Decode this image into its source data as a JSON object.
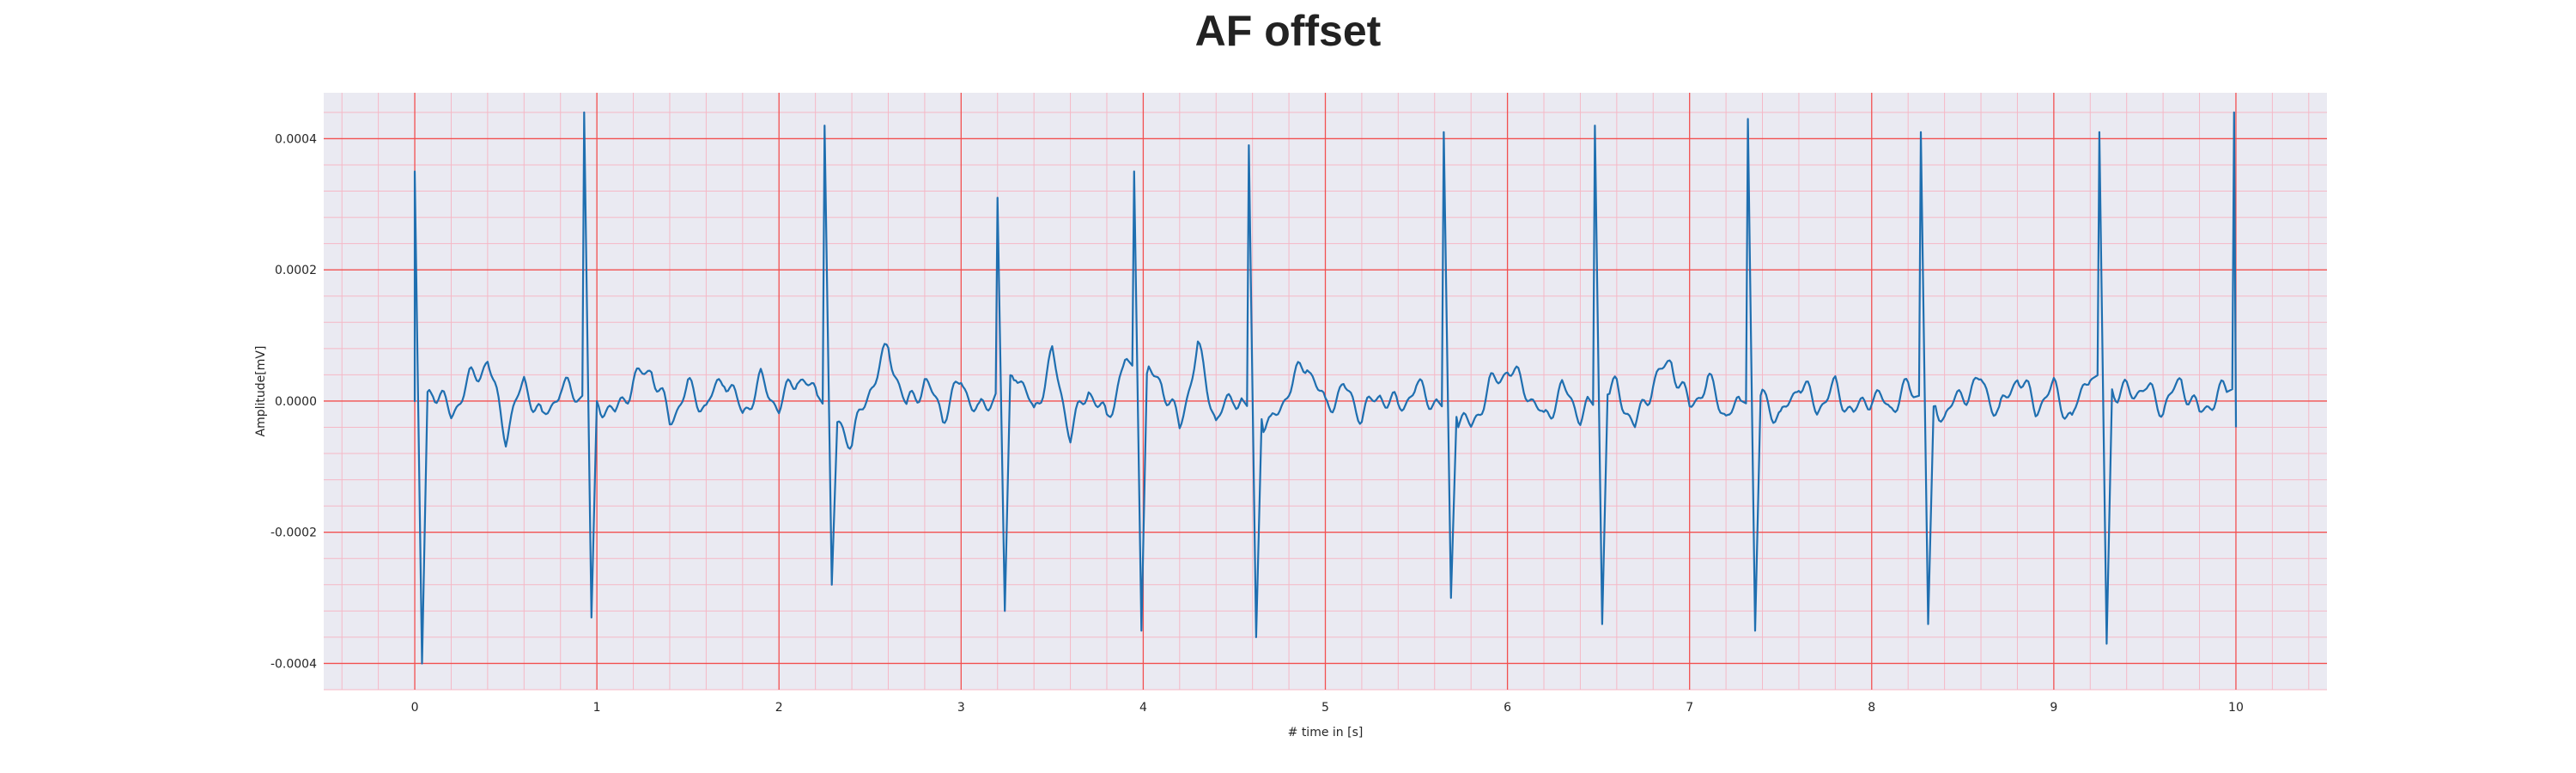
{
  "colors": {
    "plot_background": "#eaeaf2",
    "major_grid": "#f25050",
    "minor_grid": "#f5b8c6",
    "series_line": "#1f6fb0"
  },
  "chart_data": {
    "type": "line",
    "title": "AF offset",
    "xlabel": "# time in [s]",
    "ylabel": "Amplitude[mV]",
    "xlim": [
      -0.5,
      10.5
    ],
    "ylim": [
      -0.00044,
      0.00047
    ],
    "xticks": [
      0,
      1,
      2,
      3,
      4,
      5,
      6,
      7,
      8,
      9,
      10
    ],
    "xtick_labels": [
      "0",
      "1",
      "2",
      "3",
      "4",
      "5",
      "6",
      "7",
      "8",
      "9",
      "10"
    ],
    "yticks": [
      -0.0004,
      -0.0002,
      0.0,
      0.0002,
      0.0004
    ],
    "ytick_labels": [
      "-0.0004",
      "-0.0002",
      "0.0000",
      "0.0002",
      "0.0004"
    ],
    "grid": "major red grid with minor pink grid",
    "legend": "none",
    "series": [
      {
        "start_value": 0.00026,
        "beats": [
          {
            "t": 0.0,
            "peak": 0.00035,
            "trough": -0.0004
          },
          {
            "t": 0.93,
            "peak": 0.00044,
            "trough": -0.00033
          },
          {
            "t": 2.25,
            "peak": 0.00042,
            "trough": -0.00028
          },
          {
            "t": 3.2,
            "peak": 0.00031,
            "trough": -0.00032
          },
          {
            "t": 3.95,
            "peak": 0.00035,
            "trough": -0.00035
          },
          {
            "t": 4.58,
            "peak": 0.00039,
            "trough": -0.00036
          },
          {
            "t": 5.65,
            "peak": 0.00041,
            "trough": -0.0003
          },
          {
            "t": 6.48,
            "peak": 0.00042,
            "trough": -0.00034
          },
          {
            "t": 7.32,
            "peak": 0.00043,
            "trough": -0.00035
          },
          {
            "t": 8.27,
            "peak": 0.00041,
            "trough": -0.00034
          },
          {
            "t": 9.25,
            "peak": 0.00041,
            "trough": -0.00037
          },
          {
            "t": 9.99,
            "peak": 0.00044,
            "trough": -4e-05
          }
        ],
        "baseline": [
          [
            0.0,
            0.0
          ],
          [
            0.1,
            2e-05
          ],
          [
            0.2,
            -2e-05
          ],
          [
            0.3,
            3e-05
          ],
          [
            0.4,
            6e-05
          ],
          [
            0.5,
            -5e-05
          ],
          [
            0.6,
            3e-05
          ],
          [
            0.7,
            -3e-05
          ],
          [
            0.8,
            2e-05
          ],
          [
            0.9,
            1e-05
          ],
          [
            1.0,
            0.0
          ],
          [
            1.1,
            -2e-05
          ],
          [
            1.2,
            3e-05
          ],
          [
            1.3,
            5e-05
          ],
          [
            1.4,
            -3e-05
          ],
          [
            1.5,
            2e-05
          ],
          [
            1.6,
            -1e-05
          ],
          [
            1.7,
            4e-05
          ],
          [
            1.8,
            -2e-05
          ],
          [
            1.9,
            3e-05
          ],
          [
            2.0,
            -1e-05
          ],
          [
            2.1,
            4e-05
          ],
          [
            2.2,
            1e-05
          ],
          [
            2.4,
            -6e-05
          ],
          [
            2.5,
            2e-05
          ],
          [
            2.6,
            8e-05
          ],
          [
            2.7,
            -1e-05
          ],
          [
            2.8,
            3e-05
          ],
          [
            2.9,
            -2e-05
          ],
          [
            3.0,
            3e-05
          ],
          [
            3.1,
            -2e-05
          ],
          [
            3.3,
            5e-05
          ],
          [
            3.4,
            -2e-05
          ],
          [
            3.5,
            7e-05
          ],
          [
            3.6,
            -5e-05
          ],
          [
            3.7,
            2e-05
          ],
          [
            3.8,
            -3e-05
          ],
          [
            3.9,
            6e-05
          ],
          [
            4.1,
            3e-05
          ],
          [
            4.2,
            -4e-05
          ],
          [
            4.3,
            8e-05
          ],
          [
            4.4,
            -3e-05
          ],
          [
            4.5,
            1e-05
          ],
          [
            4.7,
            -4e-05
          ],
          [
            4.8,
            2e-05
          ],
          [
            4.9,
            6e-05
          ],
          [
            5.0,
            -1e-05
          ],
          [
            5.1,
            2e-05
          ],
          [
            5.2,
            -2e-05
          ],
          [
            5.3,
            1e-05
          ],
          [
            5.4,
            -1e-05
          ],
          [
            5.5,
            2e-05
          ],
          [
            5.6,
            0.0
          ],
          [
            5.8,
            -4e-05
          ],
          [
            5.9,
            2e-05
          ],
          [
            6.0,
            5e-05
          ],
          [
            6.1,
            2e-05
          ],
          [
            6.2,
            -3e-05
          ],
          [
            6.3,
            2e-05
          ],
          [
            6.4,
            -2e-05
          ],
          [
            6.6,
            2e-05
          ],
          [
            6.7,
            -4e-05
          ],
          [
            6.8,
            3e-05
          ],
          [
            6.9,
            6e-05
          ],
          [
            7.0,
            -1e-05
          ],
          [
            7.1,
            3e-05
          ],
          [
            7.2,
            -2e-05
          ],
          [
            7.4,
            1e-05
          ],
          [
            7.5,
            -3e-05
          ],
          [
            7.6,
            3e-05
          ],
          [
            7.7,
            -1e-05
          ],
          [
            7.8,
            2e-05
          ],
          [
            7.9,
            -2e-05
          ],
          [
            8.0,
            1e-05
          ],
          [
            8.1,
            -1e-05
          ],
          [
            8.2,
            2e-05
          ],
          [
            8.4,
            -2e-05
          ],
          [
            8.5,
            1e-05
          ],
          [
            8.6,
            3e-05
          ],
          [
            8.7,
            -2e-05
          ],
          [
            8.8,
            4e-05
          ],
          [
            8.9,
            -1e-05
          ],
          [
            9.0,
            2e-05
          ],
          [
            9.1,
            -3e-05
          ],
          [
            9.2,
            5e-05
          ],
          [
            9.35,
            1e-05
          ],
          [
            9.5,
            2e-05
          ],
          [
            9.6,
            -1e-05
          ],
          [
            9.7,
            3e-05
          ],
          [
            9.8,
            -2e-05
          ],
          [
            9.9,
            1e-05
          ],
          [
            10.0,
            2e-05
          ]
        ]
      }
    ]
  }
}
